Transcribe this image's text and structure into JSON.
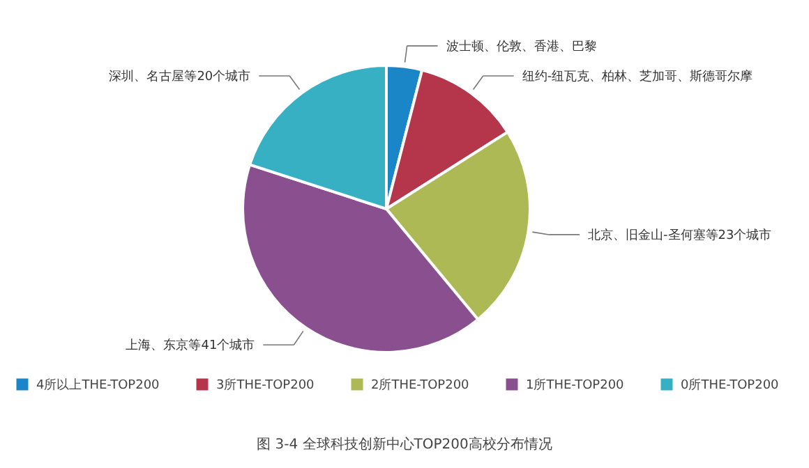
{
  "chart_data": {
    "type": "pie",
    "title": "图 3-4 全球科技创新中心TOP200高校分布情况",
    "categories": [
      "4所以上THE-TOP200",
      "3所THE-TOP200",
      "2所THE-TOP200",
      "1所THE-TOP200",
      "0所THE-TOP200"
    ],
    "values": [
      4,
      12,
      23,
      41,
      20
    ],
    "colors": [
      "#1a86c8",
      "#b5364a",
      "#adb955",
      "#8a4f8f",
      "#36b0c2"
    ],
    "annotations": [
      "波士顿、伦敦、香港、巴黎",
      "纽约-纽瓦克、柏林、芝加哥、斯德哥尔摩",
      "北京、旧金山-圣何塞等23个城市",
      "上海、东京等41个城市",
      "深圳、名古屋等20个城市"
    ],
    "legend": "bottom"
  }
}
